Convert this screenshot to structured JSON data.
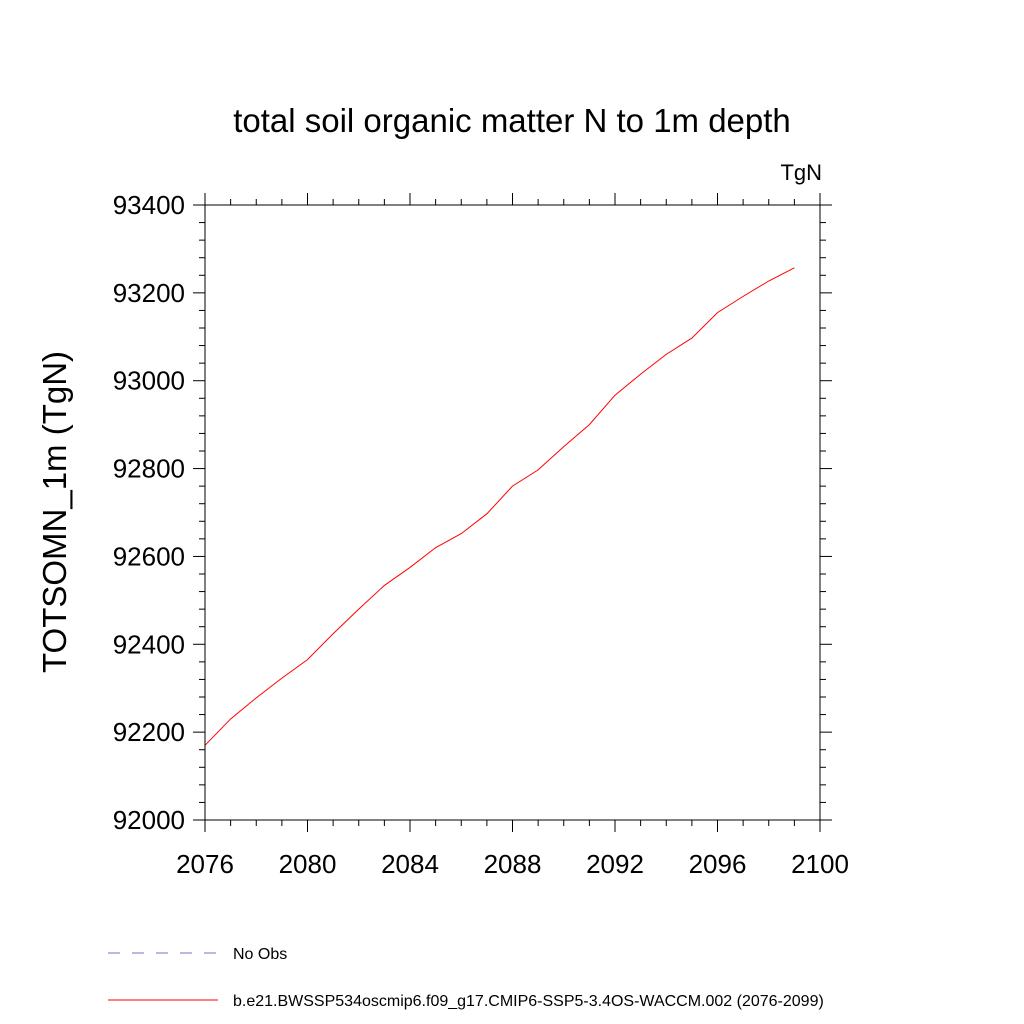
{
  "chart_data": {
    "type": "line",
    "title": "total soil organic matter N to 1m depth",
    "units": "TgN",
    "xlabel": "",
    "ylabel": "TOTSOMN_1m  (TgN)",
    "xlim": [
      2076,
      2100
    ],
    "ylim": [
      92000,
      93400
    ],
    "x_ticks": [
      2076,
      2080,
      2084,
      2088,
      2092,
      2096,
      2100
    ],
    "y_ticks": [
      92000,
      92200,
      92400,
      92600,
      92800,
      93000,
      93200,
      93400
    ],
    "grid": false,
    "legend_position": "bottom-left",
    "series": [
      {
        "name": "b.e21.BWSSP534oscmip6.f09_g17.CMIP6-SSP5-3.4OS-WACCM.002 (2076-2099)",
        "color": "#ff0000",
        "style": "solid",
        "x": [
          2076,
          2077,
          2078,
          2079,
          2080,
          2081,
          2082,
          2083,
          2084,
          2085,
          2086,
          2087,
          2088,
          2089,
          2090,
          2091,
          2092,
          2093,
          2094,
          2095,
          2096,
          2097,
          2098,
          2099
        ],
        "values": [
          92170,
          92230,
          92278,
          92323,
          92365,
          92424,
          92480,
          92534,
          92575,
          92620,
          92652,
          92697,
          92760,
          92797,
          92850,
          92900,
          92967,
          93015,
          93060,
          93097,
          93155,
          93192,
          93227,
          93257
        ]
      }
    ]
  },
  "legend": {
    "items": [
      {
        "label": "No Obs",
        "color": "#7b6fd0",
        "style": "dashed"
      },
      {
        "label": "b.e21.BWSSP534oscmip6.f09_g17.CMIP6-SSP5-3.4OS-WACCM.002 (2076-2099)",
        "color": "#ff0000",
        "style": "solid"
      }
    ]
  }
}
